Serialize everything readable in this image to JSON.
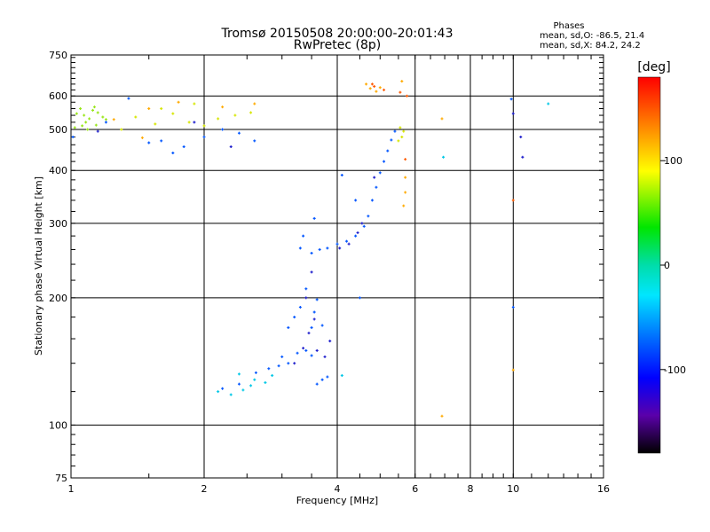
{
  "chart_data": {
    "type": "scatter",
    "title": "Tromsø 20150508 20:00:00-20:01:43",
    "subtitle": "RwPretec (8p)",
    "stats": {
      "heading": "Phases",
      "line1": "mean, sd,O: -86.5, 21.4",
      "line2": "mean, sd,X:  84.2, 24.2"
    },
    "xlabel": "Frequency [MHz]",
    "ylabel": "Stationary phase Virtual Height [km]",
    "xscale": "log",
    "yscale": "log",
    "xlim": [
      1,
      16
    ],
    "ylim": [
      75,
      750
    ],
    "xticks": [
      1,
      2,
      4,
      6,
      8,
      10,
      16
    ],
    "xtick_labels": [
      "1",
      "2",
      "4",
      "6",
      "8",
      "10",
      "16"
    ],
    "yticks": [
      75,
      100,
      200,
      300,
      400,
      500,
      600,
      750
    ],
    "ytick_labels": [
      "75",
      "100",
      "200",
      "300",
      "400",
      "500",
      "600",
      "750"
    ],
    "grid": true,
    "colorbar": {
      "label": "[deg]",
      "range": [
        -180,
        180
      ],
      "ticks": [
        100,
        0,
        -100
      ],
      "tick_labels": [
        "100",
        "0",
        "-100"
      ]
    },
    "series": [
      {
        "color": "#99e619",
        "points": [
          [
            1.03,
            545
          ],
          [
            1.05,
            560
          ],
          [
            1.07,
            540
          ],
          [
            1.1,
            530
          ],
          [
            1.12,
            555
          ],
          [
            1.08,
            520
          ],
          [
            1.15,
            548
          ],
          [
            1.18,
            535
          ],
          [
            1.13,
            565
          ],
          [
            1.06,
            510
          ],
          [
            1.02,
            505
          ],
          [
            1.09,
            500
          ],
          [
            1.14,
            512
          ],
          [
            1.2,
            528
          ]
        ]
      },
      {
        "color": "#d6e600",
        "points": [
          [
            1.4,
            535
          ],
          [
            1.55,
            515
          ],
          [
            1.7,
            545
          ],
          [
            1.85,
            520
          ],
          [
            2.0,
            510
          ],
          [
            2.15,
            530
          ],
          [
            1.3,
            500
          ],
          [
            1.6,
            560
          ],
          [
            1.9,
            575
          ],
          [
            2.35,
            540
          ],
          [
            2.55,
            548
          ],
          [
            5.55,
            505
          ],
          [
            5.6,
            480
          ],
          [
            5.5,
            470
          ],
          [
            5.65,
            495
          ]
        ]
      },
      {
        "color": "#ffaa00",
        "points": [
          [
            1.25,
            528
          ],
          [
            1.45,
            478
          ],
          [
            1.5,
            560
          ],
          [
            1.75,
            580
          ],
          [
            2.2,
            565
          ],
          [
            2.6,
            575
          ],
          [
            4.65,
            640
          ],
          [
            4.75,
            625
          ],
          [
            4.9,
            615
          ],
          [
            5.0,
            628
          ],
          [
            5.6,
            650
          ],
          [
            5.7,
            355
          ],
          [
            5.65,
            330
          ],
          [
            5.7,
            385
          ],
          [
            6.9,
            530
          ],
          [
            6.9,
            105
          ],
          [
            10.0,
            135
          ]
        ]
      },
      {
        "color": "#ff5a00",
        "points": [
          [
            4.8,
            640
          ],
          [
            4.85,
            632
          ],
          [
            5.1,
            620
          ],
          [
            5.55,
            612
          ],
          [
            5.75,
            600
          ],
          [
            5.7,
            425
          ],
          [
            10.0,
            340
          ]
        ]
      },
      {
        "color": "#00c8e6",
        "points": [
          [
            2.15,
            120
          ],
          [
            2.3,
            118
          ],
          [
            2.45,
            121
          ],
          [
            2.55,
            124
          ],
          [
            2.6,
            128
          ],
          [
            2.75,
            126
          ],
          [
            2.85,
            131
          ],
          [
            2.4,
            132
          ],
          [
            4.1,
            131
          ],
          [
            12.0,
            575
          ],
          [
            6.95,
            430
          ]
        ]
      },
      {
        "color": "#0055ff",
        "points": [
          [
            2.2,
            122
          ],
          [
            2.4,
            125
          ],
          [
            2.62,
            133
          ],
          [
            2.8,
            136
          ],
          [
            2.95,
            138
          ],
          [
            3.0,
            145
          ],
          [
            3.1,
            140
          ],
          [
            3.25,
            148
          ],
          [
            3.4,
            150
          ],
          [
            3.5,
            146
          ],
          [
            3.6,
            125
          ],
          [
            3.7,
            128
          ],
          [
            3.8,
            130
          ],
          [
            3.1,
            170
          ],
          [
            3.2,
            180
          ],
          [
            3.3,
            190
          ],
          [
            3.4,
            210
          ],
          [
            3.5,
            170
          ],
          [
            3.55,
            185
          ],
          [
            3.6,
            198
          ],
          [
            3.7,
            172
          ],
          [
            3.3,
            262
          ],
          [
            3.5,
            255
          ],
          [
            3.65,
            260
          ],
          [
            3.8,
            262
          ],
          [
            4.0,
            268
          ],
          [
            4.2,
            272
          ],
          [
            4.4,
            280
          ],
          [
            4.6,
            295
          ],
          [
            4.7,
            312
          ],
          [
            4.8,
            340
          ],
          [
            4.9,
            365
          ],
          [
            5.0,
            395
          ],
          [
            5.1,
            420
          ],
          [
            5.2,
            445
          ],
          [
            5.3,
            472
          ],
          [
            5.4,
            495
          ],
          [
            3.35,
            280
          ],
          [
            3.55,
            308
          ],
          [
            4.1,
            390
          ],
          [
            4.4,
            340
          ],
          [
            1.6,
            470
          ],
          [
            1.8,
            455
          ],
          [
            2.0,
            480
          ],
          [
            2.2,
            500
          ],
          [
            2.4,
            490
          ],
          [
            1.5,
            465
          ],
          [
            1.7,
            440
          ],
          [
            1.01,
            480
          ],
          [
            2.6,
            470
          ],
          [
            1.2,
            520
          ],
          [
            1.35,
            592
          ],
          [
            4.5,
            200
          ],
          [
            9.9,
            590
          ],
          [
            10.0,
            190
          ]
        ]
      },
      {
        "color": "#1f1fcc",
        "points": [
          [
            3.2,
            140
          ],
          [
            3.35,
            152
          ],
          [
            3.45,
            165
          ],
          [
            3.55,
            178
          ],
          [
            3.4,
            200
          ],
          [
            3.5,
            230
          ],
          [
            3.6,
            150
          ],
          [
            3.75,
            145
          ],
          [
            3.85,
            158
          ],
          [
            4.05,
            262
          ],
          [
            4.25,
            268
          ],
          [
            4.45,
            285
          ],
          [
            4.55,
            300
          ],
          [
            4.85,
            385
          ],
          [
            1.9,
            520
          ],
          [
            2.3,
            455
          ],
          [
            1.15,
            495
          ],
          [
            10.0,
            545
          ],
          [
            10.4,
            480
          ],
          [
            10.5,
            430
          ]
        ]
      }
    ]
  }
}
